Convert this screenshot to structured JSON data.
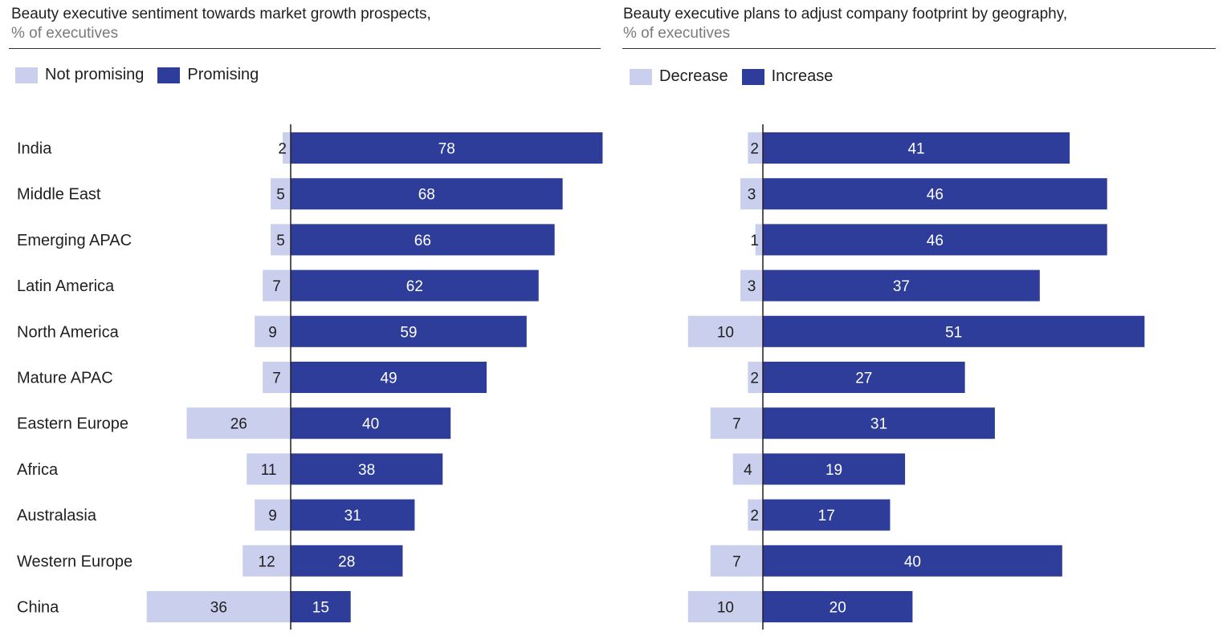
{
  "colors": {
    "negative": "#c9cfec",
    "positive": "#2e3d99",
    "axis": "#1f1f1f",
    "text": "#1f1f1f",
    "subtext": "#7a7a7a",
    "bar_label_light": "#ffffff",
    "bar_label_dark": "#1f1f1f"
  },
  "chart_data": [
    {
      "type": "bar",
      "orientation": "horizontal-diverging",
      "title": "Beauty executive sentiment towards market growth prospects,",
      "subtitle": "% of executives",
      "legend": {
        "position": "top-left",
        "entries": [
          "Not promising",
          "Promising"
        ]
      },
      "categories": [
        "India",
        "Middle East",
        "Emerging APAC",
        "Latin America",
        "North America",
        "Mature APAC",
        "Eastern Europe",
        "Africa",
        "Australasia",
        "Western Europe",
        "China"
      ],
      "series": [
        {
          "name": "Not promising",
          "direction": "left",
          "values": [
            2,
            5,
            5,
            7,
            9,
            7,
            26,
            11,
            9,
            12,
            36
          ]
        },
        {
          "name": "Promising",
          "direction": "right",
          "values": [
            78,
            68,
            66,
            62,
            59,
            49,
            40,
            38,
            31,
            28,
            15
          ]
        }
      ]
    },
    {
      "type": "bar",
      "orientation": "horizontal-diverging",
      "title": "Beauty executive plans to adjust company footprint by geography,",
      "subtitle": "% of executives",
      "legend": {
        "position": "top-left",
        "entries": [
          "Decrease",
          "Increase"
        ]
      },
      "categories": [
        "India",
        "Middle East",
        "Emerging APAC",
        "Latin America",
        "North America",
        "Mature APAC",
        "Eastern Europe",
        "Africa",
        "Australasia",
        "Western Europe",
        "China"
      ],
      "series": [
        {
          "name": "Decrease",
          "direction": "left",
          "values": [
            2,
            3,
            1,
            3,
            10,
            2,
            7,
            4,
            2,
            7,
            10
          ]
        },
        {
          "name": "Increase",
          "direction": "right",
          "values": [
            41,
            46,
            46,
            37,
            51,
            27,
            31,
            19,
            17,
            40,
            20
          ]
        }
      ]
    }
  ]
}
